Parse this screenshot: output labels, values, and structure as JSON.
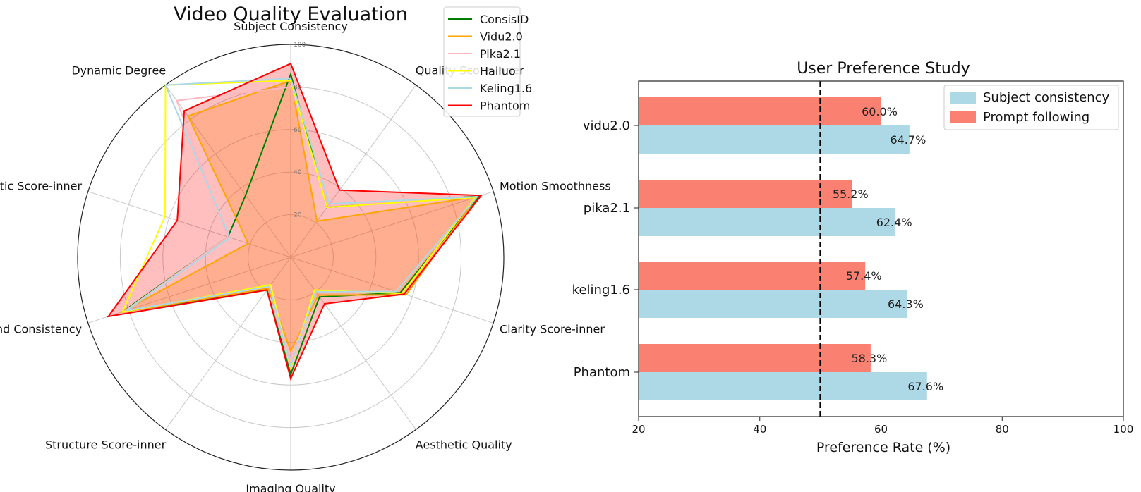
{
  "chart_data": [
    {
      "type": "radar",
      "title": "Video Quality Evaluation",
      "axes": [
        "Subject Consistency",
        "Quality Score-inner",
        "Motion Smoothness",
        "Clarity Score-inner",
        "Aesthetic Quality",
        "Imaging Quality",
        "Structure Score-inner",
        "Background Consistency",
        "Aesthetic Score-inner",
        "Dynamic Degree"
      ],
      "radial_ticks": [
        "20",
        "40",
        "60",
        "80",
        "100"
      ],
      "rlim": [
        0,
        100
      ],
      "grid": true,
      "legend_position": "top-right",
      "series": [
        {
          "name": "ConsisID",
          "color": "#008000",
          "fill": false,
          "values": [
            86,
            29,
            93,
            54,
            23,
            55,
            19,
            83,
            31,
            36
          ]
        },
        {
          "name": "Vidu2.0",
          "color": "#FFA500",
          "fill": true,
          "values": [
            83,
            21,
            92,
            57,
            22,
            44,
            18,
            84,
            21,
            82
          ]
        },
        {
          "name": "Pika2.1",
          "color": "#FFB6C1",
          "fill": false,
          "values": [
            80,
            30,
            92,
            52,
            20,
            48,
            17,
            82,
            31,
            91
          ]
        },
        {
          "name": "Hailuo",
          "color": "#FFFF00",
          "fill": false,
          "values": [
            83,
            29,
            91,
            55,
            19,
            52,
            16,
            83,
            62,
            100
          ]
        },
        {
          "name": "Keling1.6",
          "color": "#ADD8E6",
          "fill": false,
          "values": [
            84,
            31,
            92,
            52,
            20,
            51,
            17,
            81,
            30,
            100
          ]
        },
        {
          "name": "Phantom",
          "color": "#FF0000",
          "fill": true,
          "values": [
            91,
            39,
            94,
            56,
            27,
            57,
            19,
            90,
            56,
            85
          ]
        }
      ]
    },
    {
      "type": "bar",
      "orientation": "horizontal",
      "title": "User Preference Study",
      "categories": [
        "vidu2.0",
        "pika2.1",
        "keling1.6",
        "Phantom"
      ],
      "series": [
        {
          "name": "Subject consistency",
          "color": "#ADD8E6",
          "values": [
            64.7,
            62.4,
            64.3,
            67.6
          ],
          "labels": [
            "64.7%",
            "62.4%",
            "64.3%",
            "67.6%"
          ]
        },
        {
          "name": "Prompt following",
          "color": "#FA8072",
          "values": [
            60.0,
            55.2,
            57.4,
            58.3
          ],
          "labels": [
            "60.0%",
            "55.2%",
            "57.4%",
            "58.3%"
          ]
        }
      ],
      "xlabel": "Preference Rate (%)",
      "xlim": [
        20,
        100
      ],
      "xticks": [
        "20",
        "40",
        "60",
        "80",
        "100"
      ],
      "reference_line": 50,
      "legend_position": "top-right",
      "grid": false
    }
  ]
}
